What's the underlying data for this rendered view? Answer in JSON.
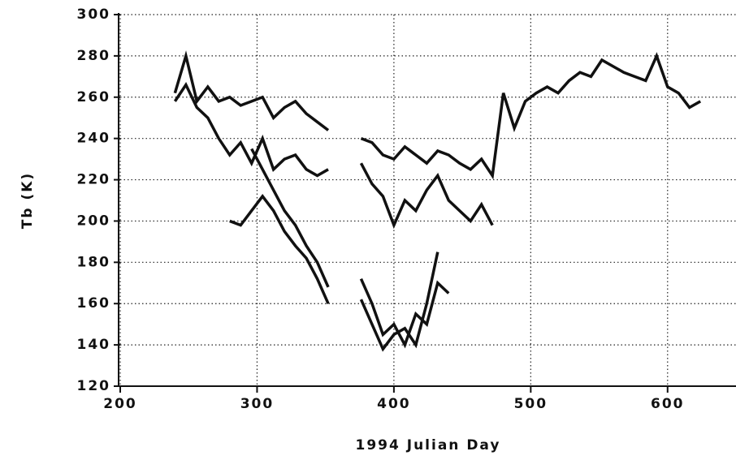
{
  "chart_data": {
    "type": "line",
    "xlabel": "1994 Julian Day",
    "ylabel": "Tb (K)",
    "xlim": [
      200,
      650
    ],
    "ylim": [
      120,
      300
    ],
    "xticks": [
      200,
      300,
      400,
      500,
      600
    ],
    "yticks": [
      120,
      140,
      160,
      180,
      200,
      220,
      240,
      260,
      280,
      300
    ],
    "grid": true,
    "x": [
      240,
      248,
      256,
      264,
      272,
      280,
      288,
      296,
      304,
      312,
      320,
      328,
      336,
      344,
      352,
      360,
      368,
      376,
      384,
      392,
      400,
      408,
      416,
      424,
      432,
      440,
      448,
      456,
      464,
      472,
      480,
      488,
      496,
      504,
      512,
      520,
      528,
      536,
      544,
      552,
      560,
      568,
      576,
      584,
      592,
      600,
      608,
      616,
      624
    ],
    "series": [
      {
        "color": "#111111",
        "values": [
          262,
          280,
          258,
          265,
          258,
          260,
          256,
          258,
          260,
          250,
          255,
          258,
          252,
          248,
          244,
          null,
          null,
          240,
          238,
          232,
          230,
          236,
          232,
          228,
          234,
          232,
          228,
          225,
          230,
          222,
          262,
          245,
          258,
          262,
          265,
          262,
          268,
          272,
          270,
          278,
          275,
          272,
          270,
          268,
          280,
          265,
          262,
          255,
          258
        ]
      },
      {
        "color": "#111111",
        "values": [
          258,
          266,
          255,
          250,
          240,
          232,
          238,
          228,
          240,
          225,
          230,
          232,
          225,
          222,
          225,
          null,
          null,
          228,
          218,
          212,
          198,
          210,
          205,
          215,
          222,
          210,
          205,
          200,
          208,
          198,
          null,
          null,
          null,
          null,
          null,
          null,
          null,
          null,
          null,
          null,
          null,
          null,
          null,
          null,
          null,
          null,
          null,
          null,
          null
        ]
      },
      {
        "color": "#111111",
        "values": [
          null,
          null,
          null,
          null,
          null,
          200,
          198,
          205,
          212,
          205,
          195,
          188,
          182,
          172,
          160,
          null,
          null,
          172,
          160,
          145,
          150,
          140,
          155,
          150,
          170,
          165,
          null,
          null,
          null,
          null,
          null,
          null,
          null,
          null,
          null,
          null,
          null,
          null,
          null,
          null,
          null,
          null,
          null,
          null,
          null,
          null,
          null,
          null,
          null
        ]
      },
      {
        "color": "#111111",
        "values": [
          null,
          null,
          null,
          null,
          null,
          null,
          null,
          235,
          225,
          215,
          205,
          198,
          188,
          180,
          168,
          null,
          null,
          162,
          150,
          138,
          145,
          148,
          140,
          160,
          185,
          null,
          null,
          null,
          null,
          null,
          null,
          null,
          null,
          null,
          null,
          null,
          null,
          null,
          null,
          null,
          null,
          null,
          null,
          null,
          null,
          null,
          null,
          null,
          null
        ]
      }
    ]
  }
}
